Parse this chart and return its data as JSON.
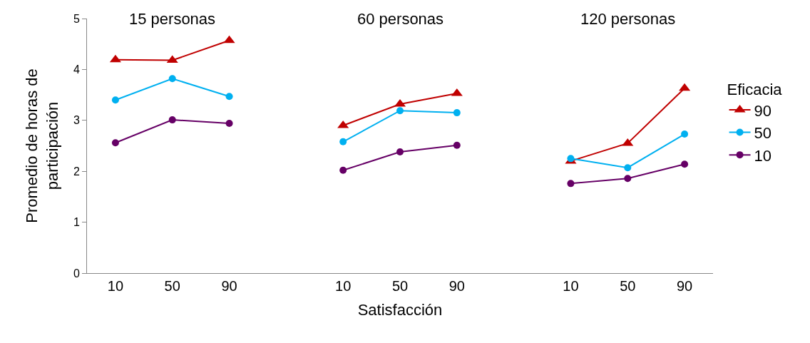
{
  "chart_data": {
    "type": "line",
    "xlabel": "Satisfacción",
    "ylabel": "Promedio de horas de\nparticipación",
    "legend_title": "Eficacia",
    "annotations": [
      "15 personas",
      "60 personas",
      "120 personas"
    ],
    "categories": [
      "10",
      "50",
      "90",
      null,
      "10",
      "50",
      "90",
      null,
      "10",
      "50",
      "90"
    ],
    "series": [
      {
        "name": "90",
        "color": "#c00000",
        "marker": "triangle",
        "values": [
          4.19,
          4.18,
          4.57,
          null,
          2.9,
          3.32,
          3.53,
          null,
          2.2,
          2.55,
          3.63
        ]
      },
      {
        "name": "50",
        "color": "#00b0f0",
        "marker": "circle",
        "values": [
          3.4,
          3.82,
          3.47,
          null,
          2.58,
          3.19,
          3.15,
          null,
          2.25,
          2.07,
          2.73
        ]
      },
      {
        "name": "10",
        "color": "#660066",
        "marker": "circle",
        "values": [
          2.56,
          3.01,
          2.94,
          null,
          2.02,
          2.38,
          2.51,
          null,
          1.76,
          1.86,
          2.14
        ]
      }
    ],
    "ylim": [
      0,
      5
    ],
    "yticks": [
      0,
      1,
      2,
      3,
      4,
      5
    ],
    "legend": "right",
    "line_style": "solid"
  }
}
